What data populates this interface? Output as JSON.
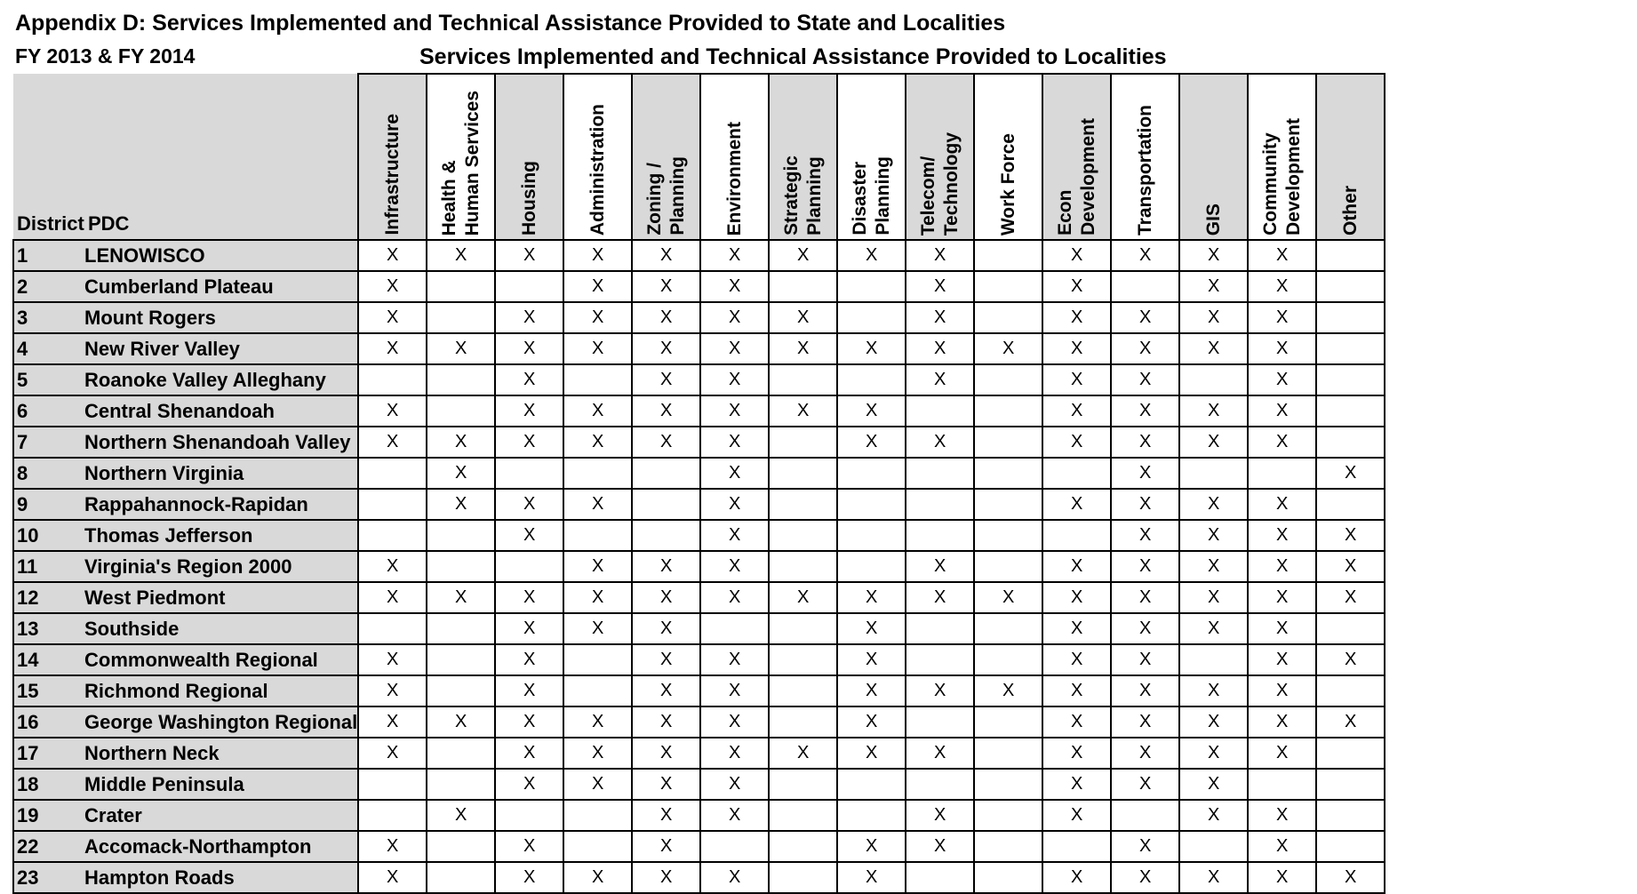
{
  "title": "Appendix D: Services Implemented and Technical Assistance Provided to State and Localities",
  "fy": "FY 2013 & FY 2014",
  "subtitle": "Services Implemented and Technical Assistance Provided to Localities",
  "header": {
    "district": "District",
    "pdc": "PDC"
  },
  "services": [
    "Infrastructure",
    "Health &\nHuman Services",
    "Housing",
    "Administration",
    "Zoning /\nPlanning",
    "Environment",
    "Strategic\nPlanning",
    "Disaster\nPlanning",
    "Telecom/\nTechnology",
    "Work Force",
    "Econ\nDevelopment",
    "Transportation",
    "GIS",
    "Community\nDevelopment",
    "Other"
  ],
  "mark": "X",
  "rows": [
    {
      "district": "1",
      "pdc": "LENOWISCO",
      "cells": [
        1,
        1,
        1,
        1,
        1,
        1,
        1,
        1,
        1,
        0,
        1,
        1,
        1,
        1,
        0
      ]
    },
    {
      "district": "2",
      "pdc": "Cumberland Plateau",
      "cells": [
        1,
        0,
        0,
        1,
        1,
        1,
        0,
        0,
        1,
        0,
        1,
        0,
        1,
        1,
        0
      ]
    },
    {
      "district": "3",
      "pdc": "Mount Rogers",
      "cells": [
        1,
        0,
        1,
        1,
        1,
        1,
        1,
        0,
        1,
        0,
        1,
        1,
        1,
        1,
        0
      ]
    },
    {
      "district": "4",
      "pdc": "New River Valley",
      "cells": [
        1,
        1,
        1,
        1,
        1,
        1,
        1,
        1,
        1,
        1,
        1,
        1,
        1,
        1,
        0
      ]
    },
    {
      "district": "5",
      "pdc": "Roanoke Valley Alleghany",
      "cells": [
        0,
        0,
        1,
        0,
        1,
        1,
        0,
        0,
        1,
        0,
        1,
        1,
        0,
        1,
        0
      ]
    },
    {
      "district": "6",
      "pdc": "Central Shenandoah",
      "cells": [
        1,
        0,
        1,
        1,
        1,
        1,
        1,
        1,
        0,
        0,
        1,
        1,
        1,
        1,
        0
      ]
    },
    {
      "district": "7",
      "pdc": "Northern Shenandoah Valley",
      "cells": [
        1,
        1,
        1,
        1,
        1,
        1,
        0,
        1,
        1,
        0,
        1,
        1,
        1,
        1,
        0
      ]
    },
    {
      "district": "8",
      "pdc": "Northern Virginia",
      "cells": [
        0,
        1,
        0,
        0,
        0,
        1,
        0,
        0,
        0,
        0,
        0,
        1,
        0,
        0,
        1
      ]
    },
    {
      "district": "9",
      "pdc": "Rappahannock-Rapidan",
      "cells": [
        0,
        1,
        1,
        1,
        0,
        1,
        0,
        0,
        0,
        0,
        1,
        1,
        1,
        1,
        0
      ]
    },
    {
      "district": "10",
      "pdc": "Thomas Jefferson",
      "cells": [
        0,
        0,
        1,
        0,
        0,
        1,
        0,
        0,
        0,
        0,
        0,
        1,
        1,
        1,
        1
      ]
    },
    {
      "district": "11",
      "pdc": "Virginia's Region 2000",
      "cells": [
        1,
        0,
        0,
        1,
        1,
        1,
        0,
        0,
        1,
        0,
        1,
        1,
        1,
        1,
        1
      ]
    },
    {
      "district": "12",
      "pdc": "West Piedmont",
      "cells": [
        1,
        1,
        1,
        1,
        1,
        1,
        1,
        1,
        1,
        1,
        1,
        1,
        1,
        1,
        1
      ]
    },
    {
      "district": "13",
      "pdc": "Southside",
      "cells": [
        0,
        0,
        1,
        1,
        1,
        0,
        0,
        1,
        0,
        0,
        1,
        1,
        1,
        1,
        0
      ]
    },
    {
      "district": "14",
      "pdc": "Commonwealth Regional",
      "cells": [
        1,
        0,
        1,
        0,
        1,
        1,
        0,
        1,
        0,
        0,
        1,
        1,
        0,
        1,
        1
      ]
    },
    {
      "district": "15",
      "pdc": "Richmond Regional",
      "cells": [
        1,
        0,
        1,
        0,
        1,
        1,
        0,
        1,
        1,
        1,
        1,
        1,
        1,
        1,
        0
      ]
    },
    {
      "district": "16",
      "pdc": "George Washington Regional",
      "cells": [
        1,
        1,
        1,
        1,
        1,
        1,
        0,
        1,
        0,
        0,
        1,
        1,
        1,
        1,
        1
      ]
    },
    {
      "district": "17",
      "pdc": "Northern Neck",
      "cells": [
        1,
        0,
        1,
        1,
        1,
        1,
        1,
        1,
        1,
        0,
        1,
        1,
        1,
        1,
        0
      ]
    },
    {
      "district": "18",
      "pdc": "Middle Peninsula",
      "cells": [
        0,
        0,
        1,
        1,
        1,
        1,
        0,
        0,
        0,
        0,
        1,
        1,
        1,
        0,
        0
      ]
    },
    {
      "district": "19",
      "pdc": "Crater",
      "cells": [
        0,
        1,
        0,
        0,
        1,
        1,
        0,
        0,
        1,
        0,
        1,
        0,
        1,
        1,
        0
      ]
    },
    {
      "district": "22",
      "pdc": "Accomack-Northampton",
      "cells": [
        1,
        0,
        1,
        0,
        1,
        0,
        0,
        1,
        1,
        0,
        0,
        1,
        0,
        1,
        0
      ]
    },
    {
      "district": "23",
      "pdc": "Hampton Roads",
      "cells": [
        1,
        0,
        1,
        1,
        1,
        1,
        0,
        1,
        0,
        0,
        1,
        1,
        1,
        1,
        1
      ]
    }
  ]
}
